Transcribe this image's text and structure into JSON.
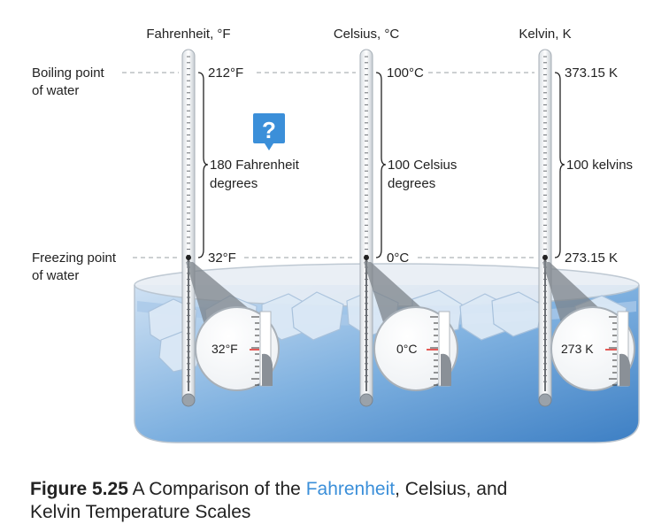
{
  "scales": {
    "fahrenheit": {
      "header": "Fahrenheit, °F",
      "boiling": "212°F",
      "freezing": "32°F",
      "span_line1": "180 Fahrenheit",
      "span_line2": "degrees",
      "zoom": "32°F"
    },
    "celsius": {
      "header": "Celsius, °C",
      "boiling": "100°C",
      "freezing": "0°C",
      "span_line1": "100 Celsius",
      "span_line2": "degrees",
      "zoom": "0°C"
    },
    "kelvin": {
      "header": "Kelvin, K",
      "boiling": "373.15 K",
      "freezing": "273.15 K",
      "span_line1": "100 kelvins",
      "zoom": "273 K"
    }
  },
  "boiling_label": {
    "line1": "Boiling point",
    "line2": "of water"
  },
  "freezing_label": {
    "line1": "Freezing point",
    "line2": "of water"
  },
  "help_icon": {
    "glyph": "?",
    "color": "#3b8fd9"
  },
  "caption": {
    "figure": "Figure 5.25",
    "part1": " A Comparison of the ",
    "link": "Fahrenheit",
    "part2": ", Celsius, and",
    "line2": "Kelvin Temperature Scales"
  },
  "colors": {
    "water": "#5b9bd6",
    "glass": "#eef3f8",
    "accent_red": "#e0332e"
  }
}
